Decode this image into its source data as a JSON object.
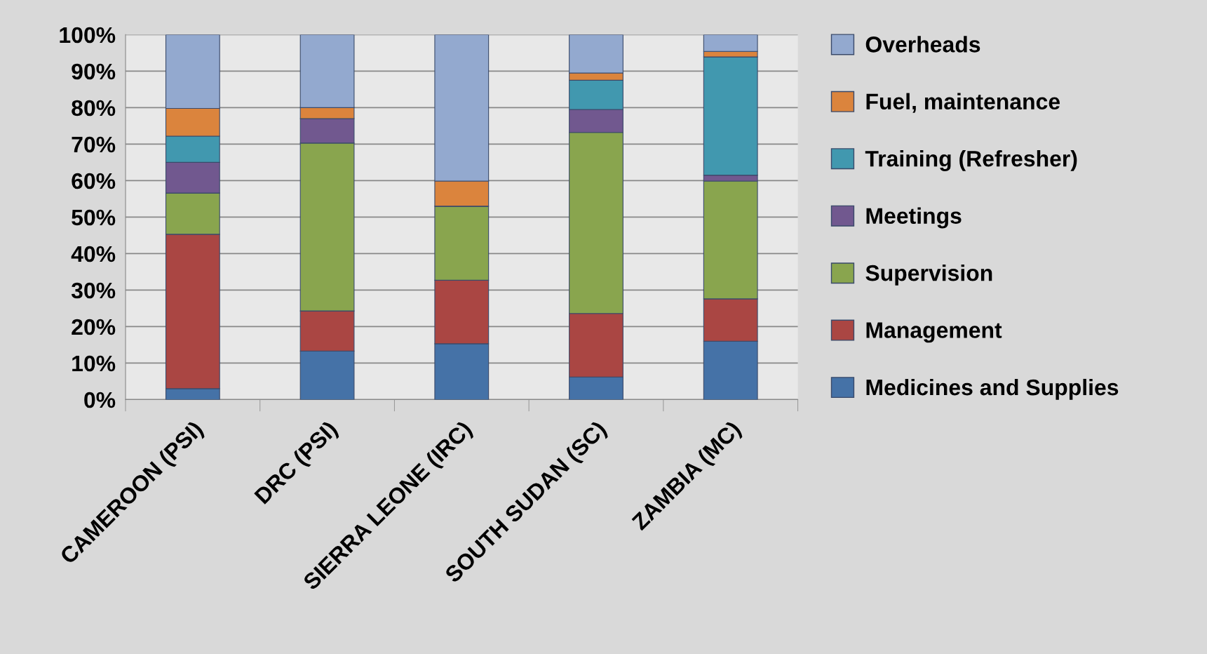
{
  "chart_data": {
    "type": "bar",
    "stacked": true,
    "categories": [
      "CAMEROON (PSI)",
      "DRC (PSI)",
      "SIERRA LEONE (IRC)",
      "SOUTH SUDAN (SC)",
      "ZAMBIA (MC)"
    ],
    "series": [
      {
        "name": "Medicines and Supplies",
        "color": "#4572a7",
        "values": [
          3,
          13.3,
          15.3,
          6.2,
          16
        ]
      },
      {
        "name": "Management",
        "color": "#aa4643",
        "values": [
          42.3,
          11,
          17.4,
          17.4,
          11.6
        ]
      },
      {
        "name": "Supervision",
        "color": "#89a54e",
        "values": [
          11.3,
          46,
          20.3,
          49.6,
          32.3
        ]
      },
      {
        "name": "Meetings",
        "color": "#71588f",
        "values": [
          8.4,
          6.7,
          0,
          6.3,
          1.6
        ]
      },
      {
        "name": "Training (Refresher)",
        "color": "#4198af",
        "values": [
          7.2,
          0,
          0,
          8,
          32.4
        ]
      },
      {
        "name": "Fuel, maintenance",
        "color": "#db843d",
        "values": [
          7.6,
          3,
          6.9,
          2,
          1.5
        ]
      },
      {
        "name": "Overheads",
        "color": "#93a9cf",
        "values": [
          20.2,
          20,
          40.1,
          10.5,
          4.6
        ]
      }
    ],
    "ylim": [
      0,
      100
    ],
    "yticks": [
      {
        "value": 0,
        "label": "0%"
      },
      {
        "value": 10,
        "label": "10%"
      },
      {
        "value": 20,
        "label": "20%"
      },
      {
        "value": 30,
        "label": "30%"
      },
      {
        "value": 40,
        "label": "40%"
      },
      {
        "value": 50,
        "label": "50%"
      },
      {
        "value": 60,
        "label": "60%"
      },
      {
        "value": 70,
        "label": "70%"
      },
      {
        "value": 80,
        "label": "80%"
      },
      {
        "value": 90,
        "label": "90%"
      },
      {
        "value": 100,
        "label": "100%"
      }
    ],
    "grid": "y",
    "legend": "right"
  }
}
